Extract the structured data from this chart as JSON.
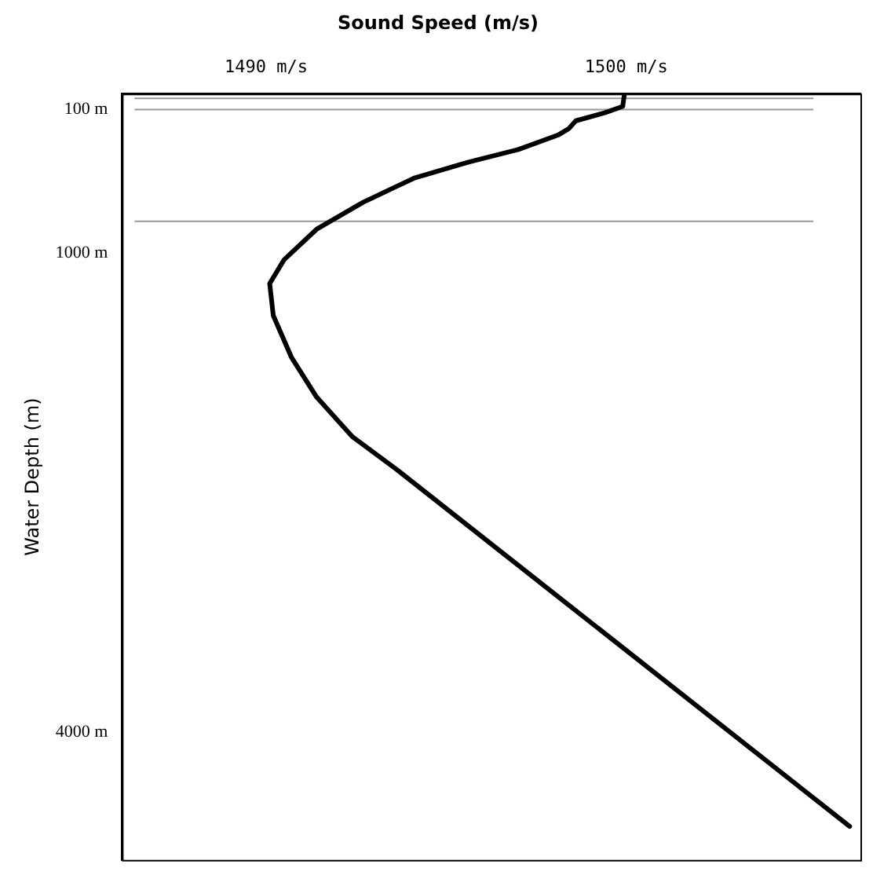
{
  "chart_data": {
    "type": "line",
    "title": "Sound Speed (m/s)",
    "ylabel": "Water Depth (m)",
    "x": [
      1499.95,
      1499.9,
      1499.4,
      1498.6,
      1498.4,
      1498.1,
      1497.0,
      1495.6,
      1494.1,
      1492.7,
      1491.4,
      1490.5,
      1490.1,
      1490.2,
      1490.7,
      1491.4,
      1492.4,
      1493.6,
      1506.2
    ],
    "values": [
      0,
      80,
      120,
      170,
      220,
      260,
      350,
      430,
      530,
      680,
      850,
      1040,
      1190,
      1390,
      1650,
      1900,
      2150,
      2350,
      4590
    ],
    "color": "#000000",
    "xlim": [
      1486,
      1506.5
    ],
    "xticks": [
      {
        "value": 1490,
        "label": "1490 m/s"
      },
      {
        "value": 1500,
        "label": "1500 m/s"
      }
    ],
    "ylim": [
      4800,
      0
    ],
    "yticks": [
      {
        "value": 100,
        "label": "100 m"
      },
      {
        "value": 1000,
        "label": "1000 m"
      },
      {
        "value": 4000,
        "label": "4000 m"
      }
    ],
    "ref_lines": [
      {
        "axis": "y",
        "value": 30,
        "color": "#999999"
      },
      {
        "axis": "y",
        "value": 100,
        "color": "#999999"
      },
      {
        "axis": "y",
        "value": 800,
        "color": "#999999"
      }
    ],
    "grid": false,
    "legend": false,
    "marker": "none",
    "line_style": "solid"
  }
}
